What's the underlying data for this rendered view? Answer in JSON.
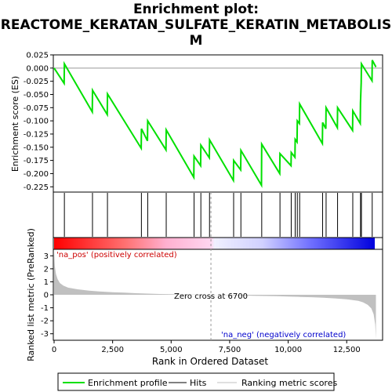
{
  "title_line1": "Enrichment plot:",
  "title_line2": "REACTOME_KERATAN_SULFATE_KERATIN_METABOLIS",
  "title_line3": "M",
  "ylabel_top": "Enrichment score (ES)",
  "ylabel_bottom": "Ranked list metric (PreRanked)",
  "xlabel": "Rank in Ordered Dataset",
  "pos_label": "'na_pos' (positively correlated)",
  "neg_label": "'na_neg' (negatively correlated)",
  "zero_cross_label": "Zero cross at 6700",
  "legend": {
    "enrichment": "Enrichment profile",
    "hits": "Hits",
    "ranking": "Ranking metric scores"
  },
  "colors": {
    "enrichment": "#00e000",
    "hits": "#000000",
    "ranking": "#c0c0c0",
    "pos_end": "#ff0000",
    "neg_end": "#0000ff"
  },
  "chart_data": {
    "type": "line",
    "x_range": [
      0,
      14000
    ],
    "x_ticks": [
      0,
      2500,
      5000,
      7500,
      10000,
      12500
    ],
    "x_tick_labels": [
      "0",
      "2,500",
      "5,000",
      "7,500",
      "10,000",
      "12,500"
    ],
    "es_ylim": [
      -0.235,
      0.025
    ],
    "es_ticks": [
      0.025,
      0.0,
      -0.025,
      -0.05,
      -0.075,
      -0.1,
      -0.125,
      -0.15,
      -0.175,
      -0.2,
      -0.225
    ],
    "es_tick_labels": [
      "0.025",
      "0.000",
      "-0.025",
      "-0.050",
      "-0.075",
      "-0.100",
      "-0.125",
      "-0.150",
      "-0.175",
      "-0.200",
      "-0.225"
    ],
    "metric_ylim": [
      -3.5,
      3.5
    ],
    "metric_ticks": [
      3,
      2,
      1,
      0,
      -1,
      -2,
      -3
    ],
    "metric_tick_labels": [
      "3",
      "2",
      "1",
      "0",
      "-1",
      "-2",
      "-3"
    ],
    "zero_cross": 6700,
    "n_genes": 13700,
    "hits": [
      440,
      1640,
      2280,
      3730,
      4000,
      4790,
      5980,
      6270,
      6640,
      7670,
      7980,
      8870,
      9650,
      10130,
      10300,
      10390,
      10490,
      11470,
      11620,
      12110,
      12760,
      13090,
      13130,
      13590
    ],
    "es_points": [
      [
        0,
        0.0
      ],
      [
        430,
        -0.029
      ],
      [
        440,
        0.008
      ],
      [
        1630,
        -0.083
      ],
      [
        1640,
        -0.042
      ],
      [
        2270,
        -0.088
      ],
      [
        2280,
        -0.049
      ],
      [
        3720,
        -0.152
      ],
      [
        3730,
        -0.115
      ],
      [
        3990,
        -0.138
      ],
      [
        4000,
        -0.1
      ],
      [
        4780,
        -0.155
      ],
      [
        4790,
        -0.117
      ],
      [
        5970,
        -0.207
      ],
      [
        5980,
        -0.167
      ],
      [
        6260,
        -0.185
      ],
      [
        6270,
        -0.146
      ],
      [
        6630,
        -0.17
      ],
      [
        6640,
        -0.136
      ],
      [
        7660,
        -0.213
      ],
      [
        7670,
        -0.175
      ],
      [
        7970,
        -0.193
      ],
      [
        7980,
        -0.156
      ],
      [
        8860,
        -0.222
      ],
      [
        8870,
        -0.144
      ],
      [
        9640,
        -0.2
      ],
      [
        9650,
        -0.162
      ],
      [
        10120,
        -0.185
      ],
      [
        10130,
        -0.16
      ],
      [
        10290,
        -0.169
      ],
      [
        10300,
        -0.135
      ],
      [
        10380,
        -0.14
      ],
      [
        10390,
        -0.1
      ],
      [
        10480,
        -0.105
      ],
      [
        10490,
        -0.068
      ],
      [
        11460,
        -0.143
      ],
      [
        11470,
        -0.103
      ],
      [
        11610,
        -0.115
      ],
      [
        11620,
        -0.075
      ],
      [
        12100,
        -0.113
      ],
      [
        12110,
        -0.075
      ],
      [
        12750,
        -0.118
      ],
      [
        12760,
        -0.081
      ],
      [
        13080,
        -0.105
      ],
      [
        13090,
        -0.066
      ],
      [
        13120,
        -0.028
      ],
      [
        13130,
        0.008
      ],
      [
        13580,
        -0.024
      ],
      [
        13590,
        0.015
      ],
      [
        13750,
        0.002
      ]
    ],
    "metric_points": [
      [
        0,
        3.3
      ],
      [
        30,
        2.2
      ],
      [
        80,
        1.6
      ],
      [
        150,
        1.2
      ],
      [
        250,
        0.9
      ],
      [
        400,
        0.7
      ],
      [
        600,
        0.55
      ],
      [
        1000,
        0.42
      ],
      [
        1500,
        0.32
      ],
      [
        2000,
        0.25
      ],
      [
        2500,
        0.2
      ],
      [
        3000,
        0.16
      ],
      [
        3500,
        0.12
      ],
      [
        4000,
        0.09
      ],
      [
        4500,
        0.06
      ],
      [
        5000,
        0.04
      ],
      [
        5500,
        0.025
      ],
      [
        6000,
        0.015
      ],
      [
        6700,
        0.0
      ],
      [
        7500,
        -0.03
      ],
      [
        8000,
        -0.05
      ],
      [
        8500,
        -0.07
      ],
      [
        9000,
        -0.09
      ],
      [
        9500,
        -0.11
      ],
      [
        10000,
        -0.13
      ],
      [
        10500,
        -0.16
      ],
      [
        11000,
        -0.19
      ],
      [
        11500,
        -0.23
      ],
      [
        12000,
        -0.28
      ],
      [
        12500,
        -0.35
      ],
      [
        13000,
        -0.47
      ],
      [
        13200,
        -0.58
      ],
      [
        13400,
        -0.78
      ],
      [
        13550,
        -1.05
      ],
      [
        13650,
        -1.5
      ],
      [
        13720,
        -2.3
      ],
      [
        13750,
        -3.4
      ]
    ]
  }
}
